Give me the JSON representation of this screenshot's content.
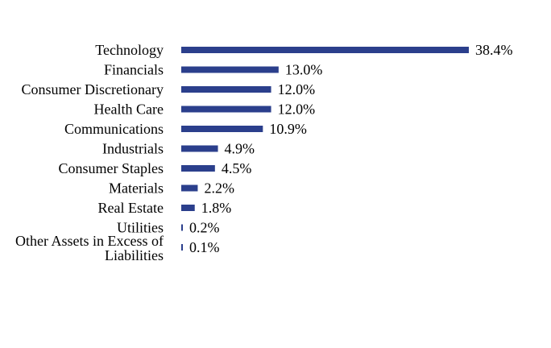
{
  "chart_data": {
    "type": "bar",
    "orientation": "horizontal",
    "title": "",
    "xlabel": "",
    "ylabel": "",
    "grid": false,
    "legend": "none",
    "bar_color": "#2b3f8c",
    "categories": [
      "Technology",
      "Financials",
      "Consumer Discretionary",
      "Health Care",
      "Communications",
      "Industrials",
      "Consumer Staples",
      "Materials",
      "Real Estate",
      "Utilities",
      "Other Assets in Excess of Liabilities"
    ],
    "category_lines": [
      [
        "Technology"
      ],
      [
        "Financials"
      ],
      [
        "Consumer Discretionary"
      ],
      [
        "Health Care"
      ],
      [
        "Communications"
      ],
      [
        "Industrials"
      ],
      [
        "Consumer Staples"
      ],
      [
        "Materials"
      ],
      [
        "Real Estate"
      ],
      [
        "Utilities"
      ],
      [
        "Other Assets in Excess of",
        "Liabilities"
      ]
    ],
    "values": [
      38.4,
      13.0,
      12.0,
      12.0,
      10.9,
      4.9,
      4.5,
      2.2,
      1.8,
      0.2,
      0.1
    ],
    "value_labels": [
      "38.4%",
      "13.0%",
      "12.0%",
      "12.0%",
      "10.9%",
      "4.9%",
      "4.5%",
      "2.2%",
      "1.8%",
      "0.2%",
      "0.1%"
    ],
    "xlim": [
      0,
      38.4
    ]
  }
}
